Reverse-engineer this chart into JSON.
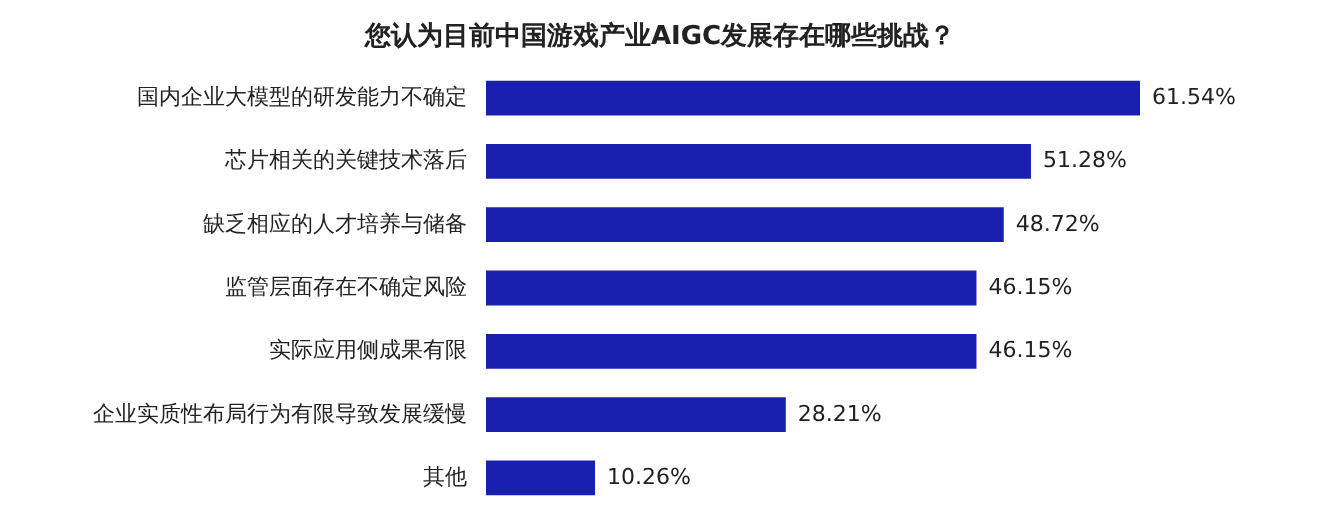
{
  "chart_data": {
    "type": "bar",
    "orientation": "horizontal",
    "title": "您认为目前中国游戏产业AIGC发展存在哪些挑战？",
    "categories": [
      "国内企业大模型的研发能力不确定",
      "芯片相关的关键技术落后",
      "缺乏相应的人才培养与储备",
      "监管层面存在不确定风险",
      "实际应用侧成果有限",
      "企业实质性布局行为有限导致发展缓慢",
      "其他"
    ],
    "values": [
      61.54,
      51.28,
      48.72,
      46.15,
      46.15,
      28.21,
      10.26
    ],
    "value_labels": [
      "61.54%",
      "51.28%",
      "48.72%",
      "46.15%",
      "46.15%",
      "28.21%",
      "10.26%"
    ],
    "color": "#1a1fb0"
  }
}
